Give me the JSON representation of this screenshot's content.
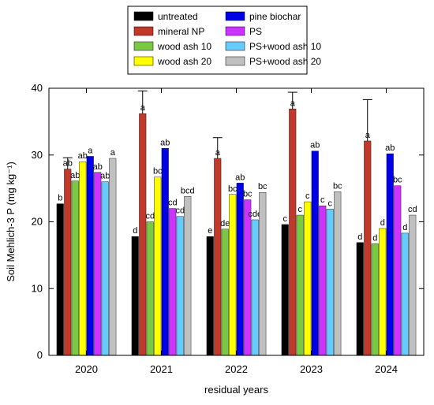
{
  "chart_data": {
    "type": "bar",
    "title": "",
    "xlabel": "residual years",
    "ylabel": "Soil Mehlich-3 P (mg kg⁻¹)",
    "ylim": [
      0,
      40
    ],
    "yticks": [
      0,
      10,
      20,
      30,
      40
    ],
    "grid": false,
    "legend_position": "top",
    "categories": [
      "2020",
      "2021",
      "2022",
      "2023",
      "2024"
    ],
    "series": [
      {
        "name": "untreated",
        "color": "#000000",
        "values": [
          22.7,
          17.8,
          17.8,
          19.6,
          16.9
        ],
        "labels": [
          "b",
          "d",
          "e",
          "c",
          "d"
        ]
      },
      {
        "name": "mineral NP",
        "color": "#c0392b",
        "values": [
          27.9,
          36.2,
          29.5,
          36.9,
          32.1
        ],
        "labels": [
          "ab",
          "a",
          "a",
          "a",
          "a"
        ],
        "error": [
          29.6,
          39.6,
          32.6,
          39.4,
          38.3
        ]
      },
      {
        "name": "wood ash 10",
        "color": "#7ac943",
        "values": [
          26.1,
          20.0,
          18.9,
          21.0,
          16.7
        ],
        "labels": [
          "ab",
          "cd",
          "de",
          "c",
          "d"
        ]
      },
      {
        "name": "wood ash 20",
        "color": "#ffff00",
        "values": [
          29.0,
          26.7,
          24.1,
          23.0,
          19.0
        ],
        "labels": [
          "ab",
          "bc",
          "bc",
          "c",
          "d"
        ]
      },
      {
        "name": "pine biochar",
        "color": "#0000e6",
        "values": [
          29.8,
          31.0,
          25.8,
          30.6,
          30.2
        ],
        "labels": [
          "a",
          "ab",
          "ab",
          "ab",
          "ab"
        ]
      },
      {
        "name": "PS",
        "color": "#cc33ff",
        "values": [
          27.4,
          22.0,
          23.3,
          22.4,
          25.4
        ],
        "labels": [
          "ab",
          "cd",
          "bc",
          "c",
          "bc"
        ]
      },
      {
        "name": "PS+wood ash 10",
        "color": "#66ccff",
        "values": [
          26.0,
          20.8,
          20.3,
          21.9,
          18.3
        ],
        "labels": [
          "ab",
          "cd",
          "cde",
          "c",
          "d"
        ]
      },
      {
        "name": "PS+wood ash 20",
        "color": "#c0c0c0",
        "values": [
          29.5,
          23.8,
          24.4,
          24.5,
          21.0
        ],
        "labels": [
          "a",
          "bcd",
          "bc",
          "bc",
          "cd"
        ]
      }
    ]
  }
}
